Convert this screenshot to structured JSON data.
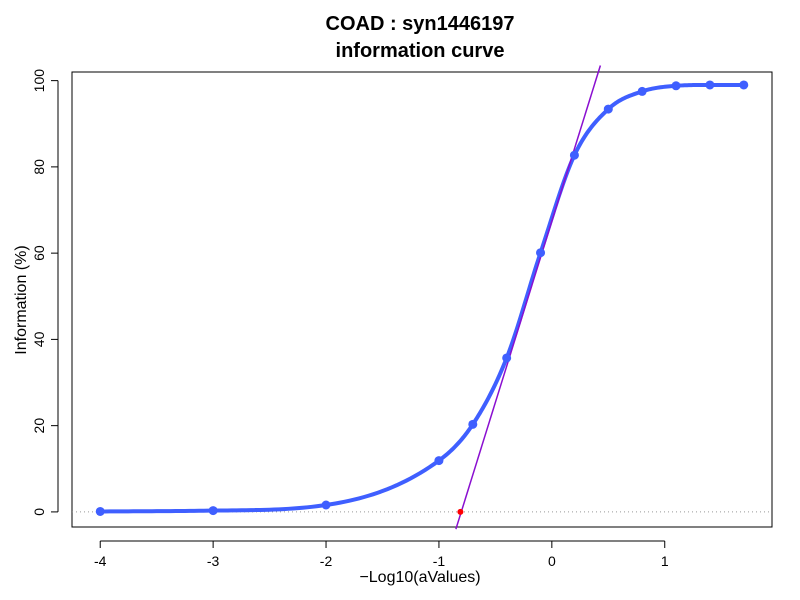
{
  "chart_data": {
    "type": "line",
    "title": "COAD : syn1446197",
    "subtitle": "information curve",
    "xlabel": "−Log10(aValues)",
    "ylabel": "Information (%)",
    "xlim": [
      -4.25,
      1.95
    ],
    "ylim": [
      -3.5,
      102
    ],
    "x_ticks": [
      -4,
      -3,
      -2,
      -1,
      0,
      1
    ],
    "x_tick_labels": [
      "-4",
      "-3",
      "-2",
      "-1",
      "0",
      "1"
    ],
    "y_ticks": [
      0,
      20,
      40,
      60,
      80,
      100
    ],
    "y_tick_labels": [
      "0",
      "20",
      "40",
      "60",
      "80",
      "100"
    ],
    "grid": false,
    "reference_line_y": 0,
    "series": [
      {
        "kind": "points",
        "color": "#3f5fff",
        "x": [
          -4,
          -3,
          -2,
          -1,
          -0.7,
          -0.4,
          -0.1,
          0.2,
          0.5,
          0.8,
          1.1,
          1.4,
          1.7
        ],
        "y": [
          0.1,
          0.3,
          1.6,
          11.9,
          20.3,
          35.7,
          60.1,
          82.7,
          93.4,
          97.5,
          98.8,
          99.0,
          99.0
        ]
      },
      {
        "kind": "smooth-curve",
        "color": "#3f5fff",
        "x": [
          -4,
          -3,
          -2,
          -1,
          -0.7,
          -0.4,
          -0.1,
          0.2,
          0.5,
          0.8,
          1.1,
          1.4,
          1.7
        ],
        "y": [
          0.1,
          0.3,
          1.6,
          11.9,
          20.3,
          35.7,
          60.1,
          82.7,
          93.4,
          97.5,
          98.8,
          99.0,
          99.0
        ]
      },
      {
        "kind": "tangent-line",
        "color": "#8a0fd0",
        "x": [
          -0.85,
          0.43
        ],
        "y": [
          -4,
          103.5
        ]
      },
      {
        "kind": "intercept-point",
        "color": "#ff0000",
        "x": [
          -0.81
        ],
        "y": [
          0
        ]
      }
    ]
  }
}
